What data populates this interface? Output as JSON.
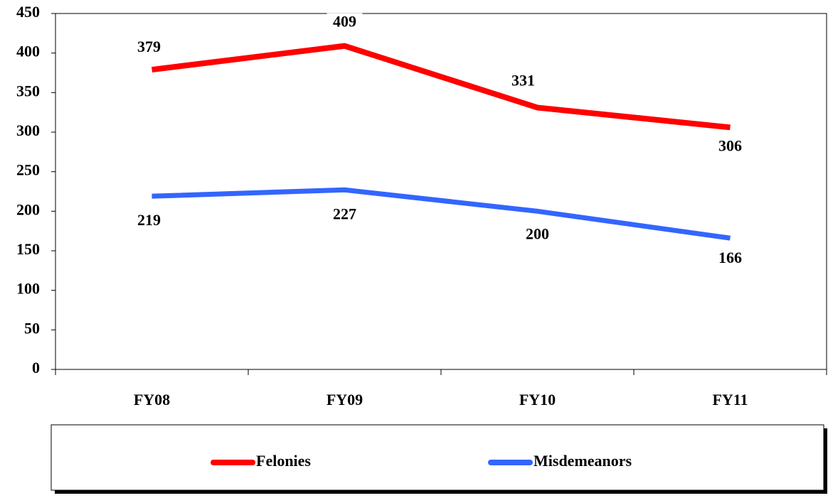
{
  "chart_data": {
    "type": "line",
    "categories": [
      "FY08",
      "FY09",
      "FY10",
      "FY11"
    ],
    "series": [
      {
        "name": "Felonies",
        "color": "#ff0000",
        "values": [
          379,
          409,
          331,
          306
        ]
      },
      {
        "name": "Misdemeanors",
        "color": "#3366ff",
        "values": [
          219,
          227,
          200,
          166
        ]
      }
    ],
    "ylim": [
      0,
      450
    ],
    "yticks": [
      0,
      50,
      100,
      150,
      200,
      250,
      300,
      350,
      400,
      450
    ],
    "grid": false,
    "legend": "bottom"
  }
}
